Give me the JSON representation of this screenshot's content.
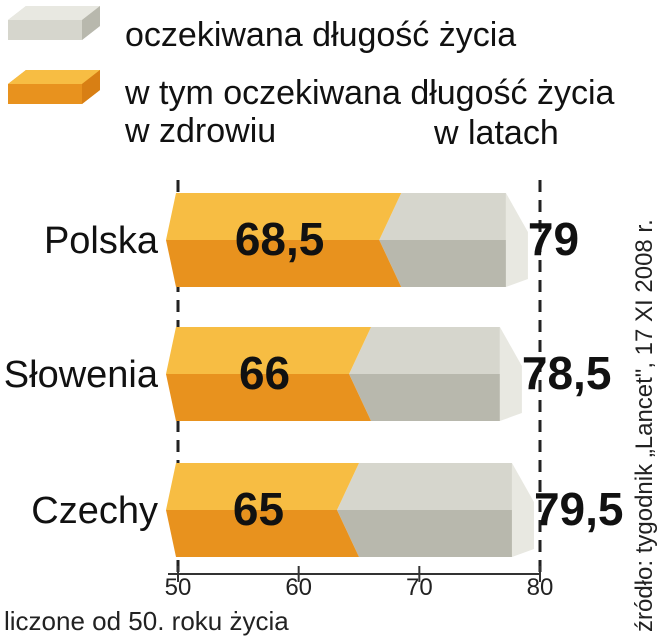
{
  "legend": {
    "total_label": "oczekiwana długość życia",
    "healthy_label_line1": "w tym oczekiwana długość życia",
    "healthy_label_line2": "w zdrowiu"
  },
  "unit_label": "w latach",
  "source": "źródło: tygodnik „Lancet\", 17 XI 2008 r.",
  "footnote": "liczone od 50. roku życia",
  "colors": {
    "healthy_top": "#f7bd43",
    "healthy_bottom": "#e8921e",
    "total_top": "#d6d6cd",
    "total_bottom": "#b8b8ad",
    "total_side": "#e8e8e1"
  },
  "chart_data": {
    "type": "bar",
    "orientation": "horizontal",
    "categories": [
      "Polska",
      "Słowenia",
      "Czechy"
    ],
    "series": [
      {
        "name": "oczekiwana długość życia",
        "values": [
          79,
          78.5,
          79.5
        ]
      },
      {
        "name": "w tym oczekiwana długość życia w zdrowiu",
        "values": [
          68.5,
          66,
          65
        ]
      }
    ],
    "value_labels_total": [
      "79",
      "78,5",
      "79,5"
    ],
    "value_labels_healthy": [
      "68,5",
      "66",
      "65"
    ],
    "xlim": [
      50,
      80
    ],
    "xticks": [
      "50",
      "60",
      "70",
      "80"
    ],
    "grid": false,
    "legend_position": "top"
  }
}
